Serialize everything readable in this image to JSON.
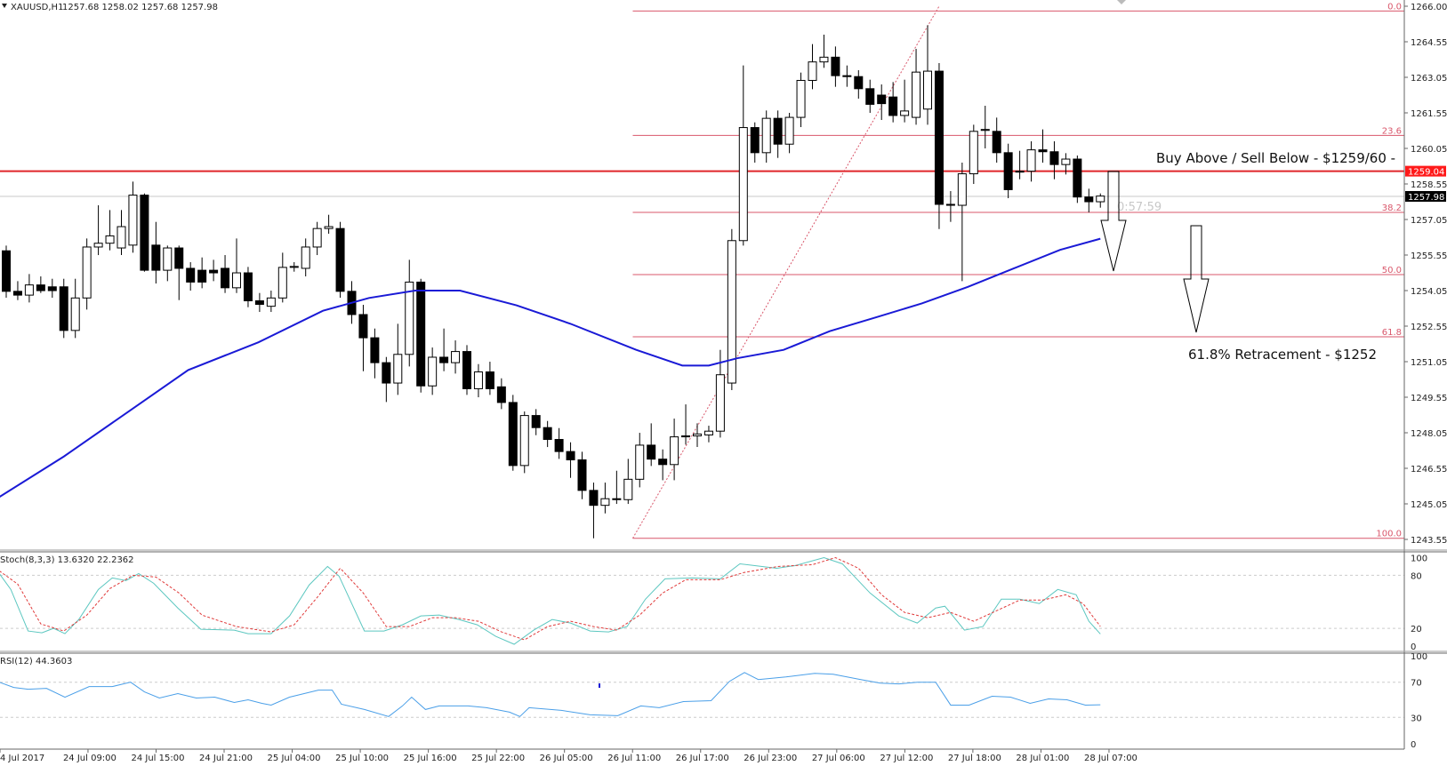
{
  "header": {
    "symbol": "XAUUSD,H1",
    "ohlc": "1257.68 1258.02 1257.68 1257.98"
  },
  "colors": {
    "bull_fill": "#ffffff",
    "bear_fill": "#000000",
    "ma": "#1a1ad6",
    "fib": "#d9576b",
    "sr_line": "#e0262b",
    "stoch_main": "#5cc7c0",
    "stoch_signal": "#e03a3a",
    "rsi": "#4a9fe8",
    "current_price_bg": "#000000",
    "sr_price_bg": "#ff1a1a"
  },
  "price_axis": {
    "ticks": [
      "1266.00",
      "1264.55",
      "1263.05",
      "1261.55",
      "1260.05",
      "1258.55",
      "1257.05",
      "1255.55",
      "1254.05",
      "1252.55",
      "1251.05",
      "1249.55",
      "1248.05",
      "1246.55",
      "1245.05",
      "1243.55"
    ],
    "current_price": "1257.98",
    "sr_price": "1259.04"
  },
  "annotations": {
    "buy_sell": "Buy Above / Sell Below - $1259/60 -",
    "retracement": "61.8% Retracement - $1252",
    "timer": "0:57:59"
  },
  "fib": {
    "high": 1265.8,
    "low": 1243.55,
    "start_bar": 54.4,
    "levels": [
      {
        "label": "0.0",
        "ratio": 0
      },
      {
        "label": "23.6",
        "ratio": 0.236
      },
      {
        "label": "38.2",
        "ratio": 0.382
      },
      {
        "label": "50.0",
        "ratio": 0.5
      },
      {
        "label": "61.8",
        "ratio": 0.618
      },
      {
        "label": "100.0",
        "ratio": 1
      }
    ]
  },
  "trendline": {
    "from": [
      54.4,
      1243.55
    ],
    "to": [
      81,
      1266.0
    ]
  },
  "candles": [
    [
      1255.68,
      1255.9,
      1253.7,
      1253.97
    ],
    [
      1253.97,
      1254.4,
      1253.6,
      1253.81
    ],
    [
      1253.81,
      1254.7,
      1253.5,
      1254.24
    ],
    [
      1254.24,
      1254.6,
      1253.9,
      1254.0
    ],
    [
      1254.16,
      1254.5,
      1253.7,
      1254.0
    ],
    [
      1254.16,
      1254.5,
      1252.0,
      1252.32
    ],
    [
      1252.32,
      1254.5,
      1252.0,
      1253.69
    ],
    [
      1253.69,
      1256.2,
      1253.2,
      1255.84
    ],
    [
      1255.84,
      1257.6,
      1255.5,
      1256.0
    ],
    [
      1256.0,
      1257.4,
      1255.7,
      1256.31
    ],
    [
      1255.8,
      1257.4,
      1255.5,
      1256.7
    ],
    [
      1255.92,
      1258.6,
      1255.6,
      1258.03
    ],
    [
      1258.03,
      1258.1,
      1254.8,
      1254.86
    ],
    [
      1255.92,
      1256.9,
      1254.3,
      1254.86
    ],
    [
      1254.86,
      1255.9,
      1254.4,
      1255.8
    ],
    [
      1255.8,
      1255.9,
      1253.6,
      1254.94
    ],
    [
      1254.94,
      1255.2,
      1254.0,
      1254.36
    ],
    [
      1254.86,
      1255.4,
      1254.1,
      1254.36
    ],
    [
      1254.86,
      1255.3,
      1254.4,
      1254.75
    ],
    [
      1254.94,
      1255.5,
      1253.9,
      1254.12
    ],
    [
      1254.12,
      1256.2,
      1253.9,
      1254.75
    ],
    [
      1254.75,
      1255.0,
      1253.3,
      1253.57
    ],
    [
      1253.57,
      1253.9,
      1253.1,
      1253.42
    ],
    [
      1253.34,
      1254.0,
      1253.1,
      1253.69
    ],
    [
      1253.69,
      1255.6,
      1253.5,
      1254.98
    ],
    [
      1254.98,
      1255.2,
      1254.8,
      1255.02
    ],
    [
      1254.94,
      1256.2,
      1254.6,
      1255.84
    ],
    [
      1255.84,
      1256.9,
      1255.5,
      1256.62
    ],
    [
      1256.62,
      1257.2,
      1256.4,
      1256.7
    ],
    [
      1256.62,
      1256.9,
      1253.7,
      1253.97
    ],
    [
      1253.97,
      1254.4,
      1252.6,
      1252.99
    ],
    [
      1252.99,
      1253.4,
      1250.6,
      1252.01
    ],
    [
      1252.01,
      1252.4,
      1250.3,
      1250.96
    ],
    [
      1250.96,
      1251.2,
      1249.3,
      1250.1
    ],
    [
      1250.1,
      1252.6,
      1249.6,
      1251.31
    ],
    [
      1251.31,
      1255.3,
      1250.8,
      1254.36
    ],
    [
      1254.36,
      1254.5,
      1249.7,
      1249.98
    ],
    [
      1249.98,
      1251.6,
      1249.6,
      1251.19
    ],
    [
      1251.19,
      1252.4,
      1250.6,
      1250.96
    ],
    [
      1250.96,
      1251.9,
      1250.5,
      1251.43
    ],
    [
      1251.43,
      1251.7,
      1249.6,
      1249.86
    ],
    [
      1249.86,
      1250.9,
      1249.5,
      1250.57
    ],
    [
      1250.57,
      1251.0,
      1249.6,
      1249.86
    ],
    [
      1249.94,
      1250.3,
      1249.0,
      1249.28
    ],
    [
      1249.28,
      1249.6,
      1246.4,
      1246.62
    ],
    [
      1246.62,
      1248.9,
      1246.3,
      1248.73
    ],
    [
      1248.73,
      1249.0,
      1247.9,
      1248.22
    ],
    [
      1248.22,
      1248.5,
      1247.4,
      1247.72
    ],
    [
      1247.72,
      1248.2,
      1246.9,
      1247.21
    ],
    [
      1247.21,
      1247.6,
      1246.1,
      1246.86
    ],
    [
      1246.86,
      1247.2,
      1245.2,
      1245.57
    ],
    [
      1245.57,
      1245.9,
      1243.55,
      1244.94
    ],
    [
      1244.94,
      1245.9,
      1244.6,
      1245.22
    ],
    [
      1245.22,
      1246.4,
      1245.0,
      1245.18
    ],
    [
      1245.18,
      1246.9,
      1245.0,
      1246.04
    ],
    [
      1246.04,
      1248.0,
      1245.7,
      1247.48
    ],
    [
      1247.48,
      1248.4,
      1246.6,
      1246.89
    ],
    [
      1246.89,
      1247.3,
      1246.0,
      1246.66
    ],
    [
      1246.66,
      1248.6,
      1246.0,
      1247.83
    ],
    [
      1247.83,
      1249.2,
      1247.5,
      1247.87
    ],
    [
      1247.87,
      1248.4,
      1247.4,
      1247.95
    ],
    [
      1247.91,
      1248.3,
      1247.6,
      1248.07
    ],
    [
      1248.07,
      1251.5,
      1247.8,
      1250.45
    ],
    [
      1250.1,
      1256.6,
      1249.8,
      1256.11
    ],
    [
      1256.11,
      1263.5,
      1255.9,
      1260.88
    ],
    [
      1260.88,
      1261.1,
      1259.4,
      1259.82
    ],
    [
      1259.82,
      1261.6,
      1259.4,
      1261.27
    ],
    [
      1261.27,
      1261.6,
      1259.6,
      1260.18
    ],
    [
      1260.18,
      1261.5,
      1259.8,
      1261.31
    ],
    [
      1261.31,
      1263.2,
      1260.9,
      1262.87
    ],
    [
      1262.87,
      1264.4,
      1262.5,
      1263.65
    ],
    [
      1263.65,
      1264.8,
      1263.4,
      1263.85
    ],
    [
      1263.85,
      1264.3,
      1262.6,
      1263.07
    ],
    [
      1263.07,
      1263.5,
      1262.6,
      1263.03
    ],
    [
      1263.03,
      1263.3,
      1262.1,
      1262.52
    ],
    [
      1262.52,
      1262.9,
      1261.5,
      1261.86
    ],
    [
      1262.25,
      1262.7,
      1261.2,
      1261.89
    ],
    [
      1262.17,
      1262.8,
      1261.1,
      1261.39
    ],
    [
      1261.39,
      1262.9,
      1261.1,
      1261.58
    ],
    [
      1261.31,
      1264.2,
      1261.0,
      1263.22
    ],
    [
      1261.66,
      1265.2,
      1261.0,
      1263.26
    ],
    [
      1263.26,
      1263.6,
      1256.6,
      1257.64
    ],
    [
      1257.64,
      1258.2,
      1256.9,
      1257.6
    ],
    [
      1257.6,
      1259.4,
      1254.4,
      1258.93
    ],
    [
      1258.93,
      1261.0,
      1258.5,
      1260.72
    ],
    [
      1260.76,
      1261.8,
      1260.0,
      1260.8
    ],
    [
      1260.72,
      1261.3,
      1259.4,
      1259.82
    ],
    [
      1259.82,
      1260.2,
      1257.9,
      1258.26
    ],
    [
      1259.04,
      1259.9,
      1258.7,
      1259.0
    ],
    [
      1259.04,
      1260.3,
      1258.6,
      1259.94
    ],
    [
      1259.94,
      1260.8,
      1259.4,
      1259.86
    ],
    [
      1259.86,
      1260.3,
      1258.7,
      1259.32
    ],
    [
      1259.32,
      1259.8,
      1258.9,
      1259.55
    ],
    [
      1259.55,
      1259.7,
      1257.7,
      1257.95
    ],
    [
      1257.95,
      1258.3,
      1257.3,
      1257.75
    ],
    [
      1257.75,
      1258.1,
      1257.5,
      1257.99
    ]
  ],
  "ma": [
    [
      -0.6,
      1245.29
    ],
    [
      5,
      1247.0
    ],
    [
      10.6,
      1248.89
    ],
    [
      15.8,
      1250.65
    ],
    [
      21.9,
      1251.82
    ],
    [
      27.5,
      1253.15
    ],
    [
      31.5,
      1253.69
    ],
    [
      35.5,
      1254.0
    ],
    [
      39.4,
      1254.0
    ],
    [
      44.3,
      1253.38
    ],
    [
      49,
      1252.6
    ],
    [
      54.7,
      1251.5
    ],
    [
      58.7,
      1250.84
    ],
    [
      61,
      1250.84
    ],
    [
      63.5,
      1251.15
    ],
    [
      67.5,
      1251.5
    ],
    [
      71.5,
      1252.29
    ],
    [
      75.5,
      1252.87
    ],
    [
      79.5,
      1253.46
    ],
    [
      83.5,
      1254.16
    ],
    [
      87.5,
      1254.94
    ],
    [
      91.5,
      1255.72
    ],
    [
      95,
      1256.19
    ]
  ],
  "stoch": {
    "label": "Stoch(8,3,3) 13.6320 22.2362",
    "axis": [
      "100",
      "80",
      "20",
      "0"
    ],
    "main": [
      [
        -0.6,
        82
      ],
      [
        0.4,
        64
      ],
      [
        1.9,
        17
      ],
      [
        3.1,
        15
      ],
      [
        4.1,
        20
      ],
      [
        5.1,
        14
      ],
      [
        6.3,
        30
      ],
      [
        8,
        64
      ],
      [
        9.2,
        77
      ],
      [
        10.4,
        74
      ],
      [
        11.5,
        82
      ],
      [
        12.8,
        71
      ],
      [
        14.9,
        43
      ],
      [
        16.9,
        19
      ],
      [
        19.8,
        18
      ],
      [
        21,
        14
      ],
      [
        23,
        14
      ],
      [
        24.6,
        34
      ],
      [
        26.3,
        69
      ],
      [
        27.9,
        90
      ],
      [
        28.9,
        79
      ],
      [
        31.1,
        17
      ],
      [
        32.8,
        17
      ],
      [
        34.4,
        24
      ],
      [
        36,
        34
      ],
      [
        37.6,
        35
      ],
      [
        39.3,
        30
      ],
      [
        40.9,
        24
      ],
      [
        42.5,
        11
      ],
      [
        44.1,
        2
      ],
      [
        45.8,
        18
      ],
      [
        47.4,
        30
      ],
      [
        49,
        26
      ],
      [
        50.7,
        17
      ],
      [
        52.3,
        16
      ],
      [
        53.9,
        22
      ],
      [
        55.5,
        53
      ],
      [
        57.2,
        76
      ],
      [
        59.6,
        77
      ],
      [
        62,
        76
      ],
      [
        63.7,
        93
      ],
      [
        66.9,
        88
      ],
      [
        68.5,
        91
      ],
      [
        71,
        100
      ],
      [
        72.6,
        93
      ],
      [
        75,
        60
      ],
      [
        77.5,
        34
      ],
      [
        79.1,
        26
      ],
      [
        80.7,
        43
      ],
      [
        81.5,
        45
      ],
      [
        83.2,
        18
      ],
      [
        84.8,
        22
      ],
      [
        86.4,
        53
      ],
      [
        88,
        53
      ],
      [
        89.7,
        48
      ],
      [
        91.3,
        64
      ],
      [
        92.9,
        58
      ],
      [
        94,
        28
      ],
      [
        95,
        13.6
      ]
    ],
    "signal": [
      [
        -0.6,
        85
      ],
      [
        1,
        70
      ],
      [
        3,
        25
      ],
      [
        5,
        17
      ],
      [
        7,
        35
      ],
      [
        9,
        65
      ],
      [
        11,
        80
      ],
      [
        13,
        78
      ],
      [
        15,
        60
      ],
      [
        17,
        35
      ],
      [
        20,
        22
      ],
      [
        23,
        16
      ],
      [
        25,
        24
      ],
      [
        27,
        55
      ],
      [
        29,
        88
      ],
      [
        31,
        60
      ],
      [
        33,
        22
      ],
      [
        35,
        22
      ],
      [
        37,
        32
      ],
      [
        39,
        32
      ],
      [
        41,
        28
      ],
      [
        43,
        16
      ],
      [
        45,
        7
      ],
      [
        47,
        22
      ],
      [
        49,
        28
      ],
      [
        51,
        22
      ],
      [
        53,
        18
      ],
      [
        55,
        35
      ],
      [
        57,
        60
      ],
      [
        59,
        75
      ],
      [
        62,
        75
      ],
      [
        64,
        83
      ],
      [
        67,
        90
      ],
      [
        70,
        92
      ],
      [
        72,
        100
      ],
      [
        74,
        88
      ],
      [
        76,
        58
      ],
      [
        78,
        38
      ],
      [
        80,
        32
      ],
      [
        82,
        38
      ],
      [
        84,
        28
      ],
      [
        86,
        40
      ],
      [
        88,
        52
      ],
      [
        90,
        52
      ],
      [
        92,
        58
      ],
      [
        93.5,
        48
      ],
      [
        95,
        22.2
      ]
    ]
  },
  "rsi": {
    "label": "RSI(12) 44.3603",
    "axis": [
      "100",
      "70",
      "30",
      "0"
    ],
    "values": [
      [
        -0.6,
        70
      ],
      [
        0.65,
        64
      ],
      [
        1.9,
        62
      ],
      [
        3.5,
        63
      ],
      [
        5.1,
        53
      ],
      [
        7.2,
        65
      ],
      [
        9.2,
        65
      ],
      [
        10.8,
        70
      ],
      [
        12,
        59
      ],
      [
        13.3,
        52
      ],
      [
        14.9,
        57
      ],
      [
        16.5,
        52
      ],
      [
        18.1,
        53
      ],
      [
        19.8,
        47
      ],
      [
        21,
        50
      ],
      [
        22.2,
        46
      ],
      [
        23,
        44
      ],
      [
        24.6,
        53
      ],
      [
        27.1,
        61
      ],
      [
        28.3,
        61
      ],
      [
        29.1,
        45
      ],
      [
        31.1,
        39
      ],
      [
        33.2,
        31
      ],
      [
        34.4,
        43
      ],
      [
        35.2,
        53
      ],
      [
        36.4,
        39
      ],
      [
        37.6,
        43
      ],
      [
        40.1,
        43
      ],
      [
        41.7,
        41
      ],
      [
        43.7,
        36
      ],
      [
        44.6,
        31
      ],
      [
        45.4,
        41
      ],
      [
        48.2,
        38
      ],
      [
        50.7,
        33
      ],
      [
        53.1,
        32
      ],
      [
        55.1,
        43
      ],
      [
        56.7,
        41
      ],
      [
        58.8,
        48
      ],
      [
        61.2,
        49
      ],
      [
        62.8,
        71
      ],
      [
        64.1,
        81
      ],
      [
        65.3,
        73
      ],
      [
        67.7,
        76
      ],
      [
        70.2,
        80
      ],
      [
        71.8,
        79
      ],
      [
        74.2,
        73
      ],
      [
        75.9,
        69
      ],
      [
        77.5,
        68
      ],
      [
        79.1,
        70
      ],
      [
        80.7,
        70
      ],
      [
        82,
        44
      ],
      [
        83.6,
        44
      ],
      [
        85.6,
        54
      ],
      [
        87.2,
        53
      ],
      [
        88.9,
        46
      ],
      [
        90.5,
        51
      ],
      [
        92.1,
        50
      ],
      [
        93.7,
        44
      ],
      [
        95,
        44.36
      ]
    ]
  },
  "time_axis": [
    "4 Jul 2017",
    "24 Jul 09:00",
    "24 Jul 15:00",
    "24 Jul 21:00",
    "25 Jul 04:00",
    "25 Jul 10:00",
    "25 Jul 16:00",
    "25 Jul 22:00",
    "26 Jul 05:00",
    "26 Jul 11:00",
    "26 Jul 17:00",
    "26 Jul 23:00",
    "27 Jul 06:00",
    "27 Jul 12:00",
    "27 Jul 18:00",
    "28 Jul 01:00",
    "28 Jul 07:00"
  ]
}
